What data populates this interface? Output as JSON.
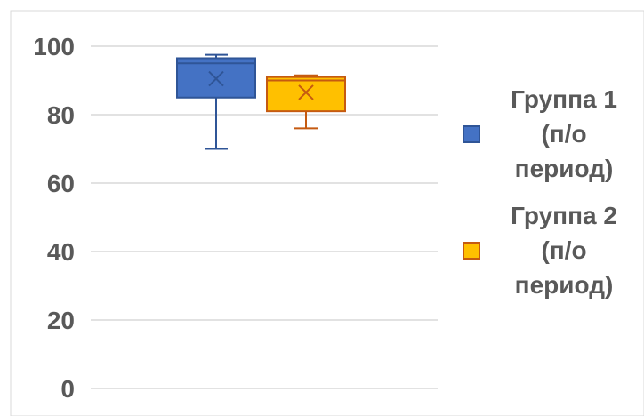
{
  "chart_data": {
    "type": "box",
    "title": "",
    "xlabel": "",
    "ylabel": "",
    "ylim": [
      0,
      100
    ],
    "yticks": [
      0,
      20,
      40,
      60,
      80,
      100
    ],
    "grid": true,
    "legend_position": "right",
    "series": [
      {
        "name": "Группа 1 (п/о период)",
        "min": 70,
        "q1": 85,
        "median": 95,
        "q3": 96.5,
        "max": 97.5,
        "mean": 90.5,
        "fill": "#4472C4",
        "stroke": "#2F5597"
      },
      {
        "name": "Группа 2 (п/о период)",
        "min": 76,
        "q1": 81,
        "median": 90,
        "q3": 91,
        "max": 91.5,
        "mean": 86.5,
        "fill": "#FFC000",
        "stroke": "#C55A11"
      }
    ],
    "colors": {
      "grid": "#D9D9D9",
      "tick_text": "#595959"
    }
  }
}
